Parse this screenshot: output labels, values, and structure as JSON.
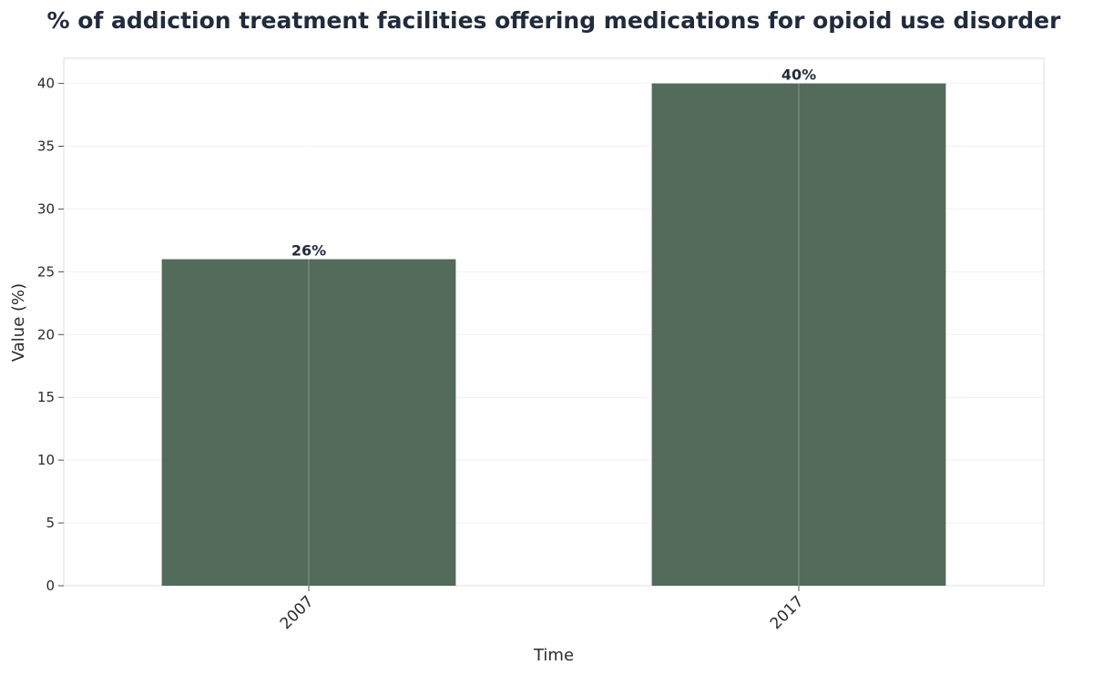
{
  "chart_data": {
    "type": "bar",
    "title": "% of addiction treatment facilities offering medications for opioid use disorder",
    "xlabel": "Time",
    "ylabel": "Value (%)",
    "categories": [
      "2007",
      "2017"
    ],
    "values": [
      26,
      40
    ],
    "data_labels": [
      "26%",
      "40%"
    ],
    "ylim": [
      0,
      42
    ],
    "yticks": [
      0,
      5,
      10,
      15,
      20,
      25,
      30,
      35,
      40
    ],
    "grid": true,
    "legend": "none",
    "colors": {
      "bar": "#536b5a",
      "grid": "#e8e8e8",
      "frame": "#dddddd",
      "title": "#222b3c"
    }
  }
}
